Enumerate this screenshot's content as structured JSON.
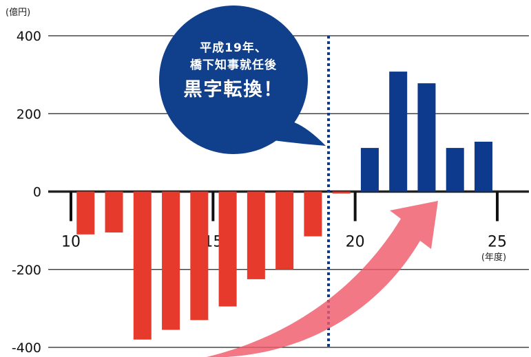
{
  "chart_data": {
    "type": "bar",
    "unit_label": "(億円)",
    "x_unit_label": "(年度)",
    "x_ticks": [
      "10",
      "15",
      "20",
      "25"
    ],
    "y_ticks": [
      "400",
      "200",
      "0",
      "-200",
      "-400"
    ],
    "ylim": [
      -400,
      400
    ],
    "xlim": [
      10,
      25
    ],
    "grid": true,
    "bars": [
      {
        "x": 11,
        "value": -110
      },
      {
        "x": 12,
        "value": -105
      },
      {
        "x": 13,
        "value": -380
      },
      {
        "x": 14,
        "value": -355
      },
      {
        "x": 15,
        "value": -330
      },
      {
        "x": 16,
        "value": -295
      },
      {
        "x": 17,
        "value": -225
      },
      {
        "x": 18,
        "value": -200
      },
      {
        "x": 19,
        "value": -115
      },
      {
        "x": 20,
        "value": -5
      },
      {
        "x": 21,
        "value": 112
      },
      {
        "x": 22,
        "value": 308
      },
      {
        "x": 23,
        "value": 278
      },
      {
        "x": 24,
        "value": 112
      },
      {
        "x": 25,
        "value": 128
      }
    ],
    "divider_after_x": 20,
    "annotation": {
      "line1": "平成19年、",
      "line2": "橋下知事就任後",
      "line3": "黒字転換！"
    },
    "colors": {
      "negative": "#e63a2c",
      "positive": "#0d3a8c",
      "callout": "#103f8c",
      "arrow": "#ef5a6a",
      "divider": "#0d3a8c",
      "grid": "#222222"
    }
  }
}
